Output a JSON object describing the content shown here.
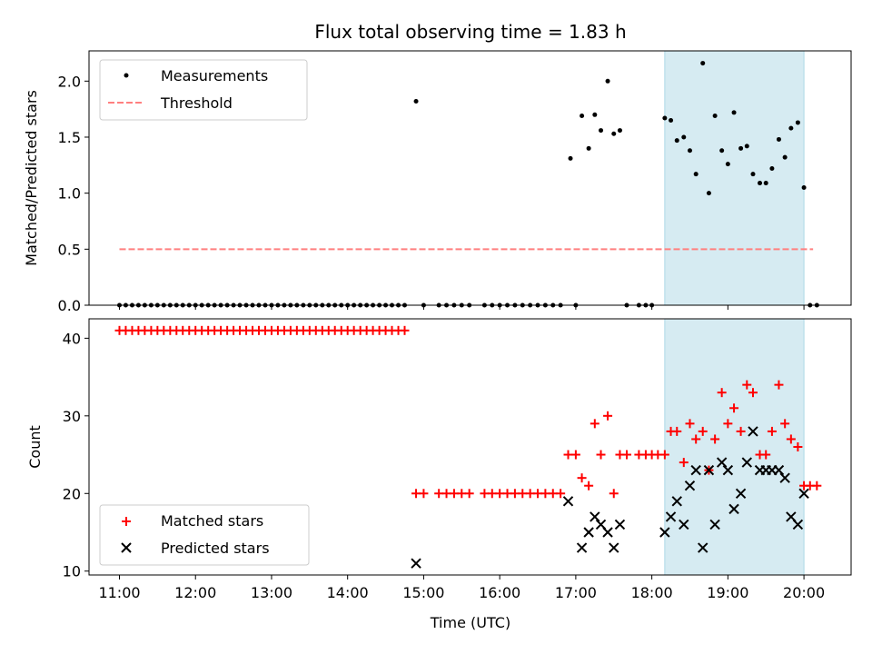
{
  "chart_data": {
    "type": "scatter",
    "title": "Flux total observing time = 1.83 h",
    "xlabel": "Time (UTC)",
    "x_ticks": [
      "11:00",
      "12:00",
      "13:00",
      "14:00",
      "15:00",
      "16:00",
      "17:00",
      "18:00",
      "19:00",
      "20:00"
    ],
    "x_range_hours": [
      10.6,
      20.62
    ],
    "shaded_interval_hours": [
      18.17,
      20.0
    ],
    "shade_color": "#add8e6",
    "panels": [
      {
        "id": "ratio",
        "ylabel": "Matched/Predicted stars",
        "ylim": [
          0.0,
          2.27
        ],
        "yticks": [
          "0.0",
          "0.5",
          "1.0",
          "1.5",
          "2.0"
        ],
        "ytick_values": [
          0.0,
          0.5,
          1.0,
          1.5,
          2.0
        ],
        "legend_position": "upper-left",
        "series": [
          {
            "name": "Measurements",
            "type": "scatter",
            "color": "#000000",
            "points": [
              [
                11.0,
                0
              ],
              [
                11.083,
                0
              ],
              [
                11.167,
                0
              ],
              [
                11.25,
                0
              ],
              [
                11.333,
                0
              ],
              [
                11.417,
                0
              ],
              [
                11.5,
                0
              ],
              [
                11.583,
                0
              ],
              [
                11.667,
                0
              ],
              [
                11.75,
                0
              ],
              [
                11.833,
                0
              ],
              [
                11.917,
                0
              ],
              [
                12.0,
                0
              ],
              [
                12.083,
                0
              ],
              [
                12.167,
                0
              ],
              [
                12.25,
                0
              ],
              [
                12.333,
                0
              ],
              [
                12.417,
                0
              ],
              [
                12.5,
                0
              ],
              [
                12.583,
                0
              ],
              [
                12.667,
                0
              ],
              [
                12.75,
                0
              ],
              [
                12.833,
                0
              ],
              [
                12.917,
                0
              ],
              [
                13.0,
                0
              ],
              [
                13.083,
                0
              ],
              [
                13.167,
                0
              ],
              [
                13.25,
                0
              ],
              [
                13.333,
                0
              ],
              [
                13.417,
                0
              ],
              [
                13.5,
                0
              ],
              [
                13.583,
                0
              ],
              [
                13.667,
                0
              ],
              [
                13.75,
                0
              ],
              [
                13.833,
                0
              ],
              [
                13.917,
                0
              ],
              [
                14.0,
                0
              ],
              [
                14.083,
                0
              ],
              [
                14.167,
                0
              ],
              [
                14.25,
                0
              ],
              [
                14.333,
                0
              ],
              [
                14.417,
                0
              ],
              [
                14.5,
                0
              ],
              [
                14.583,
                0
              ],
              [
                14.667,
                0
              ],
              [
                14.75,
                0
              ],
              [
                14.9,
                1.82
              ],
              [
                15.0,
                0
              ],
              [
                15.2,
                0
              ],
              [
                15.3,
                0
              ],
              [
                15.4,
                0
              ],
              [
                15.5,
                0
              ],
              [
                15.6,
                0
              ],
              [
                15.8,
                0
              ],
              [
                15.9,
                0
              ],
              [
                16.0,
                0
              ],
              [
                16.1,
                0
              ],
              [
                16.2,
                0
              ],
              [
                16.3,
                0
              ],
              [
                16.4,
                0
              ],
              [
                16.5,
                0
              ],
              [
                16.6,
                0
              ],
              [
                16.7,
                0
              ],
              [
                16.8,
                0
              ],
              [
                16.93,
                1.31
              ],
              [
                17.0,
                0
              ],
              [
                17.08,
                1.69
              ],
              [
                17.17,
                1.4
              ],
              [
                17.25,
                1.7
              ],
              [
                17.33,
                1.56
              ],
              [
                17.42,
                2.0
              ],
              [
                17.5,
                1.53
              ],
              [
                17.58,
                1.56
              ],
              [
                17.67,
                0
              ],
              [
                17.83,
                0
              ],
              [
                17.92,
                0
              ],
              [
                18.0,
                0
              ],
              [
                18.17,
                1.67
              ],
              [
                18.25,
                1.65
              ],
              [
                18.33,
                1.47
              ],
              [
                18.42,
                1.5
              ],
              [
                18.5,
                1.38
              ],
              [
                18.58,
                1.17
              ],
              [
                18.67,
                2.16
              ],
              [
                18.75,
                1.0
              ],
              [
                18.83,
                1.69
              ],
              [
                18.92,
                1.38
              ],
              [
                19.0,
                1.26
              ],
              [
                19.08,
                1.72
              ],
              [
                19.17,
                1.4
              ],
              [
                19.25,
                1.42
              ],
              [
                19.33,
                1.17
              ],
              [
                19.42,
                1.09
              ],
              [
                19.5,
                1.09
              ],
              [
                19.58,
                1.22
              ],
              [
                19.67,
                1.48
              ],
              [
                19.75,
                1.32
              ],
              [
                19.83,
                1.58
              ],
              [
                19.92,
                1.63
              ],
              [
                20.0,
                1.05
              ],
              [
                20.08,
                0
              ],
              [
                20.17,
                0
              ]
            ]
          },
          {
            "name": "Threshold",
            "type": "line",
            "style": "dashed",
            "color": "#ff7f7f",
            "x": [
              11.0,
              20.12
            ],
            "y": [
              0.5,
              0.5
            ]
          }
        ]
      },
      {
        "id": "counts",
        "ylabel": "Count",
        "ylim": [
          9.5,
          42.5
        ],
        "yticks": [
          "10",
          "20",
          "30",
          "40"
        ],
        "ytick_values": [
          10,
          20,
          30,
          40
        ],
        "legend_position": "lower-left",
        "series": [
          {
            "name": "Matched stars",
            "type": "scatter",
            "marker": "plus",
            "color": "#ff0000",
            "points": [
              [
                11.0,
                41
              ],
              [
                11.083,
                41
              ],
              [
                11.167,
                41
              ],
              [
                11.25,
                41
              ],
              [
                11.333,
                41
              ],
              [
                11.417,
                41
              ],
              [
                11.5,
                41
              ],
              [
                11.583,
                41
              ],
              [
                11.667,
                41
              ],
              [
                11.75,
                41
              ],
              [
                11.833,
                41
              ],
              [
                11.917,
                41
              ],
              [
                12.0,
                41
              ],
              [
                12.083,
                41
              ],
              [
                12.167,
                41
              ],
              [
                12.25,
                41
              ],
              [
                12.333,
                41
              ],
              [
                12.417,
                41
              ],
              [
                12.5,
                41
              ],
              [
                12.583,
                41
              ],
              [
                12.667,
                41
              ],
              [
                12.75,
                41
              ],
              [
                12.833,
                41
              ],
              [
                12.917,
                41
              ],
              [
                13.0,
                41
              ],
              [
                13.083,
                41
              ],
              [
                13.167,
                41
              ],
              [
                13.25,
                41
              ],
              [
                13.333,
                41
              ],
              [
                13.417,
                41
              ],
              [
                13.5,
                41
              ],
              [
                13.583,
                41
              ],
              [
                13.667,
                41
              ],
              [
                13.75,
                41
              ],
              [
                13.833,
                41
              ],
              [
                13.917,
                41
              ],
              [
                14.0,
                41
              ],
              [
                14.083,
                41
              ],
              [
                14.167,
                41
              ],
              [
                14.25,
                41
              ],
              [
                14.333,
                41
              ],
              [
                14.417,
                41
              ],
              [
                14.5,
                41
              ],
              [
                14.583,
                41
              ],
              [
                14.667,
                41
              ],
              [
                14.75,
                41
              ],
              [
                14.9,
                20
              ],
              [
                15.0,
                20
              ],
              [
                15.2,
                20
              ],
              [
                15.3,
                20
              ],
              [
                15.4,
                20
              ],
              [
                15.5,
                20
              ],
              [
                15.6,
                20
              ],
              [
                15.8,
                20
              ],
              [
                15.9,
                20
              ],
              [
                16.0,
                20
              ],
              [
                16.1,
                20
              ],
              [
                16.2,
                20
              ],
              [
                16.3,
                20
              ],
              [
                16.4,
                20
              ],
              [
                16.5,
                20
              ],
              [
                16.6,
                20
              ],
              [
                16.7,
                20
              ],
              [
                16.8,
                20
              ],
              [
                16.9,
                25
              ],
              [
                17.0,
                25
              ],
              [
                17.08,
                22
              ],
              [
                17.17,
                21
              ],
              [
                17.25,
                29
              ],
              [
                17.33,
                25
              ],
              [
                17.42,
                30
              ],
              [
                17.5,
                20
              ],
              [
                17.58,
                25
              ],
              [
                17.67,
                25
              ],
              [
                17.83,
                25
              ],
              [
                17.92,
                25
              ],
              [
                18.0,
                25
              ],
              [
                18.08,
                25
              ],
              [
                18.17,
                25
              ],
              [
                18.25,
                28
              ],
              [
                18.33,
                28
              ],
              [
                18.42,
                24
              ],
              [
                18.5,
                29
              ],
              [
                18.58,
                27
              ],
              [
                18.67,
                28
              ],
              [
                18.75,
                23
              ],
              [
                18.83,
                27
              ],
              [
                18.92,
                33
              ],
              [
                19.0,
                29
              ],
              [
                19.08,
                31
              ],
              [
                19.17,
                28
              ],
              [
                19.25,
                34
              ],
              [
                19.33,
                33
              ],
              [
                19.42,
                25
              ],
              [
                19.5,
                25
              ],
              [
                19.58,
                28
              ],
              [
                19.67,
                34
              ],
              [
                19.75,
                29
              ],
              [
                19.83,
                27
              ],
              [
                19.92,
                26
              ],
              [
                20.0,
                21
              ],
              [
                20.08,
                21
              ],
              [
                20.17,
                21
              ]
            ]
          },
          {
            "name": "Predicted stars",
            "type": "scatter",
            "marker": "x",
            "color": "#000000",
            "points": [
              [
                14.9,
                11
              ],
              [
                16.9,
                19
              ],
              [
                17.08,
                13
              ],
              [
                17.17,
                15
              ],
              [
                17.25,
                17
              ],
              [
                17.33,
                16
              ],
              [
                17.42,
                15
              ],
              [
                17.5,
                13
              ],
              [
                17.58,
                16
              ],
              [
                18.17,
                15
              ],
              [
                18.25,
                17
              ],
              [
                18.33,
                19
              ],
              [
                18.42,
                16
              ],
              [
                18.5,
                21
              ],
              [
                18.58,
                23
              ],
              [
                18.67,
                13
              ],
              [
                18.75,
                23
              ],
              [
                18.83,
                16
              ],
              [
                18.92,
                24
              ],
              [
                19.0,
                23
              ],
              [
                19.08,
                18
              ],
              [
                19.17,
                20
              ],
              [
                19.25,
                24
              ],
              [
                19.33,
                28
              ],
              [
                19.42,
                23
              ],
              [
                19.5,
                23
              ],
              [
                19.58,
                23
              ],
              [
                19.67,
                23
              ],
              [
                19.75,
                22
              ],
              [
                19.83,
                17
              ],
              [
                19.92,
                16
              ],
              [
                20.0,
                20
              ]
            ]
          }
        ]
      }
    ]
  }
}
